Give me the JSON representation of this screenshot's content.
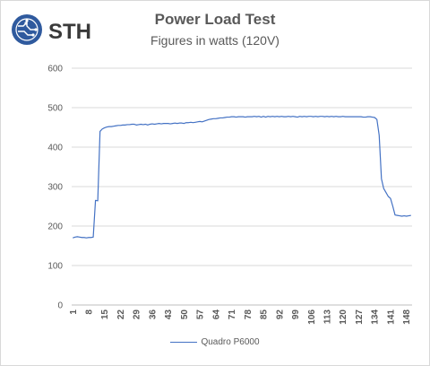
{
  "brand": {
    "logo_text": "STH",
    "accent": "#2f5a9e"
  },
  "chart_data": {
    "type": "line",
    "title": "Power Load Test",
    "subtitle": "Figures in watts (120V)",
    "xlabel": "",
    "ylabel": "",
    "ylim": [
      0,
      600
    ],
    "yticks": [
      0,
      100,
      200,
      300,
      400,
      500,
      600
    ],
    "x_tick_labels": [
      "1",
      "8",
      "15",
      "22",
      "29",
      "36",
      "43",
      "50",
      "57",
      "64",
      "71",
      "78",
      "85",
      "92",
      "99",
      "106",
      "113",
      "120",
      "127",
      "134",
      "141",
      "148"
    ],
    "x_tick_start": 1,
    "x_tick_step": 7,
    "grid": true,
    "legend_position": "bottom",
    "series": [
      {
        "name": "Quadro P6000",
        "color": "#4472c4",
        "x_start": 1,
        "values": [
          170,
          172,
          173,
          172,
          171,
          171,
          170,
          171,
          171,
          172,
          265,
          264,
          440,
          446,
          449,
          451,
          452,
          452,
          453,
          454,
          455,
          455,
          456,
          456,
          457,
          457,
          458,
          458,
          456,
          457,
          458,
          457,
          458,
          456,
          458,
          459,
          458,
          459,
          460,
          459,
          460,
          460,
          460,
          459,
          460,
          461,
          460,
          461,
          461,
          460,
          462,
          462,
          463,
          462,
          463,
          464,
          465,
          464,
          466,
          468,
          470,
          471,
          472,
          472,
          473,
          474,
          474,
          475,
          476,
          476,
          477,
          477,
          476,
          477,
          477,
          477,
          476,
          477,
          477,
          477,
          478,
          477,
          478,
          476,
          478,
          476,
          478,
          477,
          478,
          477,
          478,
          477,
          478,
          477,
          477,
          478,
          477,
          478,
          477,
          476,
          478,
          477,
          478,
          477,
          478,
          478,
          477,
          478,
          477,
          478,
          478,
          477,
          478,
          477,
          478,
          477,
          478,
          477,
          477,
          478,
          477,
          477,
          477,
          477,
          477,
          477,
          477,
          477,
          476,
          476,
          477,
          477,
          476,
          475,
          470,
          430,
          320,
          295,
          285,
          275,
          270,
          250,
          228,
          227,
          226,
          225,
          226,
          225,
          226,
          227
        ]
      }
    ]
  }
}
